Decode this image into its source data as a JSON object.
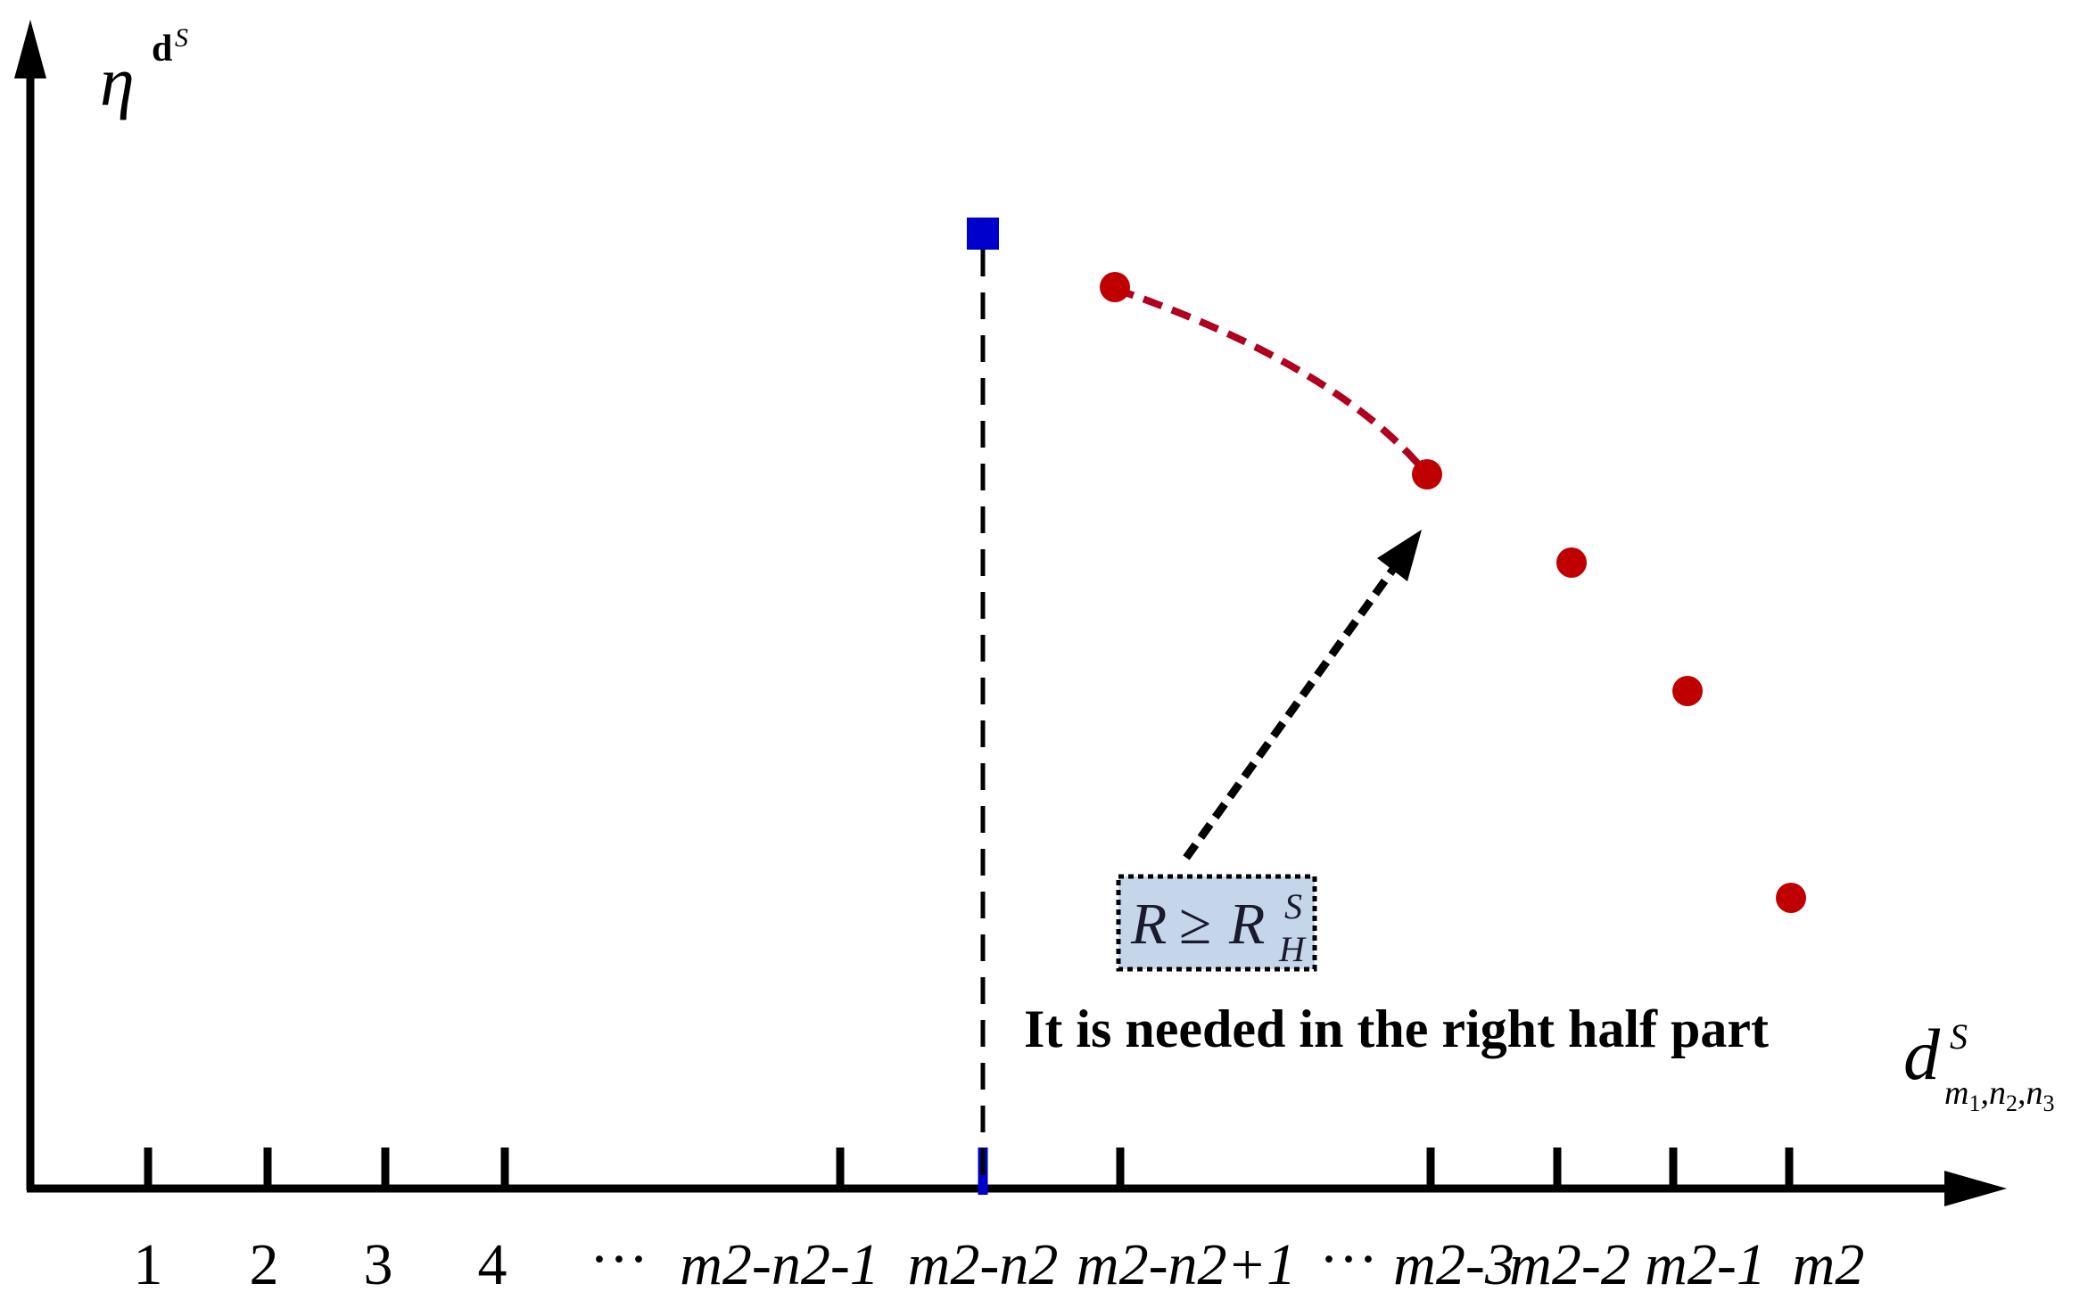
{
  "colors": {
    "axis": "#000000",
    "marker_square": "#0000cc",
    "marker_points": "#c00000",
    "dashed_curve": "#b00020",
    "formula_box_fill": "#c5d6ea"
  },
  "axes": {
    "y_label_main": "η",
    "y_label_sup": "d",
    "y_label_sup2": "S",
    "x_label_main": "d",
    "x_label_sup": "S",
    "x_label_sub": "m",
    "x_label_sub_idx1": "1",
    "x_label_sub_sep1": ",",
    "x_label_sub_n2": "n",
    "x_label_sub_idx2": "2",
    "x_label_sub_sep2": ",",
    "x_label_sub_n3": "n",
    "x_label_sub_idx3": "3"
  },
  "ticks": [
    {
      "label": "1"
    },
    {
      "label": "2"
    },
    {
      "label": "3"
    },
    {
      "label": "4"
    },
    {
      "label": "···"
    },
    {
      "label": "m2-n2-1"
    },
    {
      "label": "m2-n2"
    },
    {
      "label": "m2-n2+1"
    },
    {
      "label": "···"
    },
    {
      "label": "m2-3"
    },
    {
      "label": "m2-2"
    },
    {
      "label": "m2-1"
    },
    {
      "label": "m2"
    }
  ],
  "annotation": {
    "formula_lhs": "R",
    "formula_op": "≥",
    "formula_rhs": "R",
    "formula_sup": "S",
    "formula_sub": "H",
    "caption": "It is needed in the right half part"
  }
}
